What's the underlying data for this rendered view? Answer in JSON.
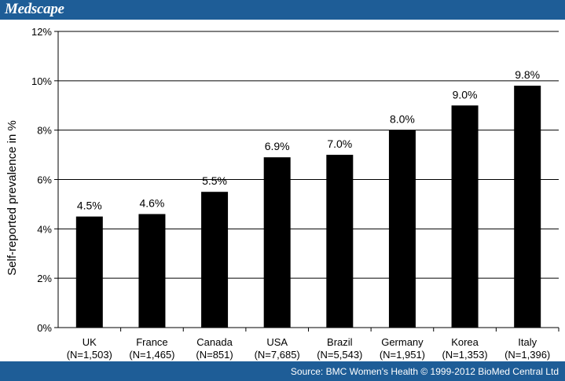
{
  "header": {
    "brand": "Medscape"
  },
  "footer": {
    "source": "Source: BMC Women's Health © 1999-2012 BioMed Central Ltd"
  },
  "colors": {
    "bar": "#000000",
    "header_bg": "#1e5d97",
    "gridline": "#000000"
  },
  "chart_data": {
    "type": "bar",
    "categories": [
      "UK",
      "France",
      "Canada",
      "USA",
      "Brazil",
      "Germany",
      "Korea",
      "Italy"
    ],
    "sample_sizes": [
      "(N=1,503)",
      "(N=1,465)",
      "(N=851)",
      "(N=7,685)",
      "(N=5,543)",
      "(N=1,951)",
      "(N=1,353)",
      "(N=1,396)"
    ],
    "values": [
      4.5,
      4.6,
      5.5,
      6.9,
      7.0,
      8.0,
      9.0,
      9.8
    ],
    "value_labels": [
      "4.5%",
      "4.6%",
      "5.5%",
      "6.9%",
      "7.0%",
      "8.0%",
      "9.0%",
      "9.8%"
    ],
    "title": "",
    "xlabel": "",
    "ylabel": "Self-reported prevalence in %",
    "ylim": [
      0,
      12
    ],
    "yticks": [
      "0%",
      "2%",
      "4%",
      "6%",
      "8%",
      "10%",
      "12%"
    ],
    "grid": true,
    "legend": "none"
  }
}
